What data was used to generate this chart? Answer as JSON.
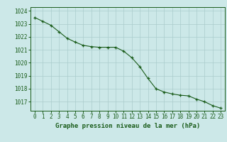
{
  "title": "Graphe pression niveau de la mer (hPa)",
  "x_values": [
    0,
    1,
    2,
    3,
    4,
    5,
    6,
    7,
    8,
    9,
    10,
    11,
    12,
    13,
    14,
    15,
    16,
    17,
    18,
    19,
    20,
    21,
    22,
    23
  ],
  "y_values": [
    1023.5,
    1023.2,
    1022.9,
    1022.4,
    1021.9,
    1021.6,
    1021.35,
    1021.25,
    1021.2,
    1021.2,
    1021.2,
    1020.9,
    1020.4,
    1019.7,
    1018.8,
    1018.0,
    1017.75,
    1017.6,
    1017.5,
    1017.45,
    1017.2,
    1017.0,
    1016.7,
    1016.5
  ],
  "ylim": [
    1016.3,
    1024.3
  ],
  "yticks": [
    1017,
    1018,
    1019,
    1020,
    1021,
    1022,
    1023,
    1024
  ],
  "xlim": [
    -0.5,
    23.5
  ],
  "xticks": [
    0,
    1,
    2,
    3,
    4,
    5,
    6,
    7,
    8,
    9,
    10,
    11,
    12,
    13,
    14,
    15,
    16,
    17,
    18,
    19,
    20,
    21,
    22,
    23
  ],
  "line_color": "#1a5c1a",
  "marker_color": "#1a5c1a",
  "bg_color": "#cce8e8",
  "grid_color": "#aacccc",
  "tick_label_color": "#1a5c1a",
  "title_color": "#1a5c1a",
  "title_fontsize": 6.5,
  "tick_fontsize": 5.5
}
